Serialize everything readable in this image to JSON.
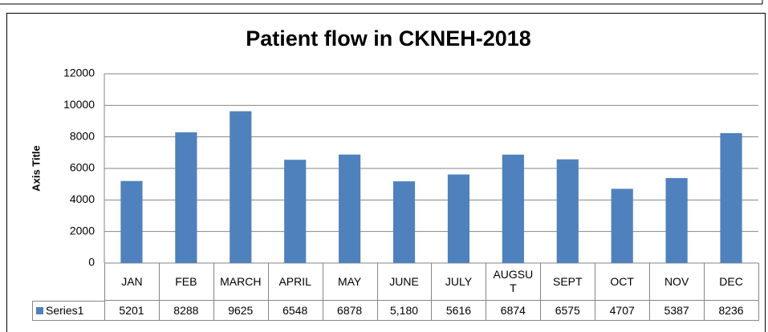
{
  "chart_data": {
    "type": "bar",
    "title": "Patient flow in CKNEH-2018",
    "y_label": "Axis Title",
    "categories": [
      "JAN",
      "FEB",
      "MARCH",
      "APRIL",
      "MAY",
      "JUNE",
      "JULY",
      "AUGSUT",
      "SEPT",
      "OCT",
      "NOV",
      "DEC"
    ],
    "series": [
      {
        "name": "Series1",
        "color": "#4f81bd",
        "values": [
          5201,
          8288,
          9625,
          6548,
          6878,
          5180,
          5616,
          6874,
          6575,
          4707,
          5387,
          8236
        ],
        "value_labels": [
          "5201",
          "8288",
          "9625",
          "6548",
          "6878",
          "5,180",
          "5616",
          "6874",
          "6575",
          "4707",
          "5387",
          "8236"
        ]
      }
    ],
    "ylim": [
      0,
      12000
    ],
    "yticks": [
      0,
      2000,
      4000,
      6000,
      8000,
      10000,
      12000
    ],
    "grid": true,
    "data_table": true
  }
}
